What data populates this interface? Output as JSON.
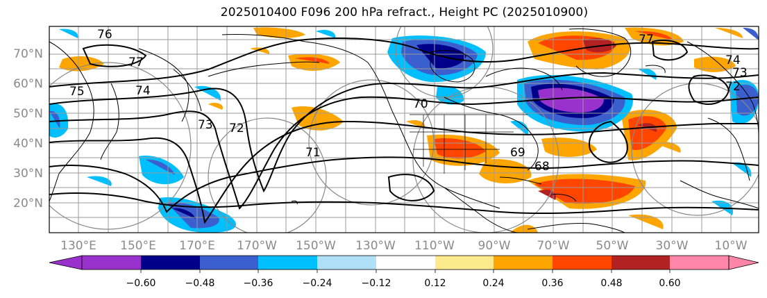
{
  "title": "2025010400 F096 200 hPa refract., Height PC (2025010900)",
  "map": {
    "lat_labels": [
      "70°N",
      "60°N",
      "50°N",
      "40°N",
      "30°N",
      "20°N"
    ],
    "lon_labels": [
      "130°E",
      "150°E",
      "170°E",
      "170°W",
      "150°W",
      "130°W",
      "110°W",
      "90°W",
      "70°W",
      "50°W",
      "30°W",
      "10°W"
    ],
    "contour_labels": [
      "76",
      "77",
      "75",
      "74",
      "73",
      "72",
      "71",
      "70",
      "69",
      "68",
      "77",
      "74",
      "73",
      "72"
    ]
  },
  "colorbar": {
    "colors": [
      "#9932cc",
      "#00008b",
      "#3b5fcd",
      "#00bfff",
      "#afe0f8",
      "#ffffff",
      "#fdea8c",
      "#ffa500",
      "#ff4500",
      "#b22222",
      "#ff85a9"
    ],
    "tick_labels": [
      "−0.60",
      "−0.48",
      "−0.36",
      "−0.24",
      "−0.12",
      "0.12",
      "0.24",
      "0.36",
      "0.48",
      "0.60"
    ]
  }
}
